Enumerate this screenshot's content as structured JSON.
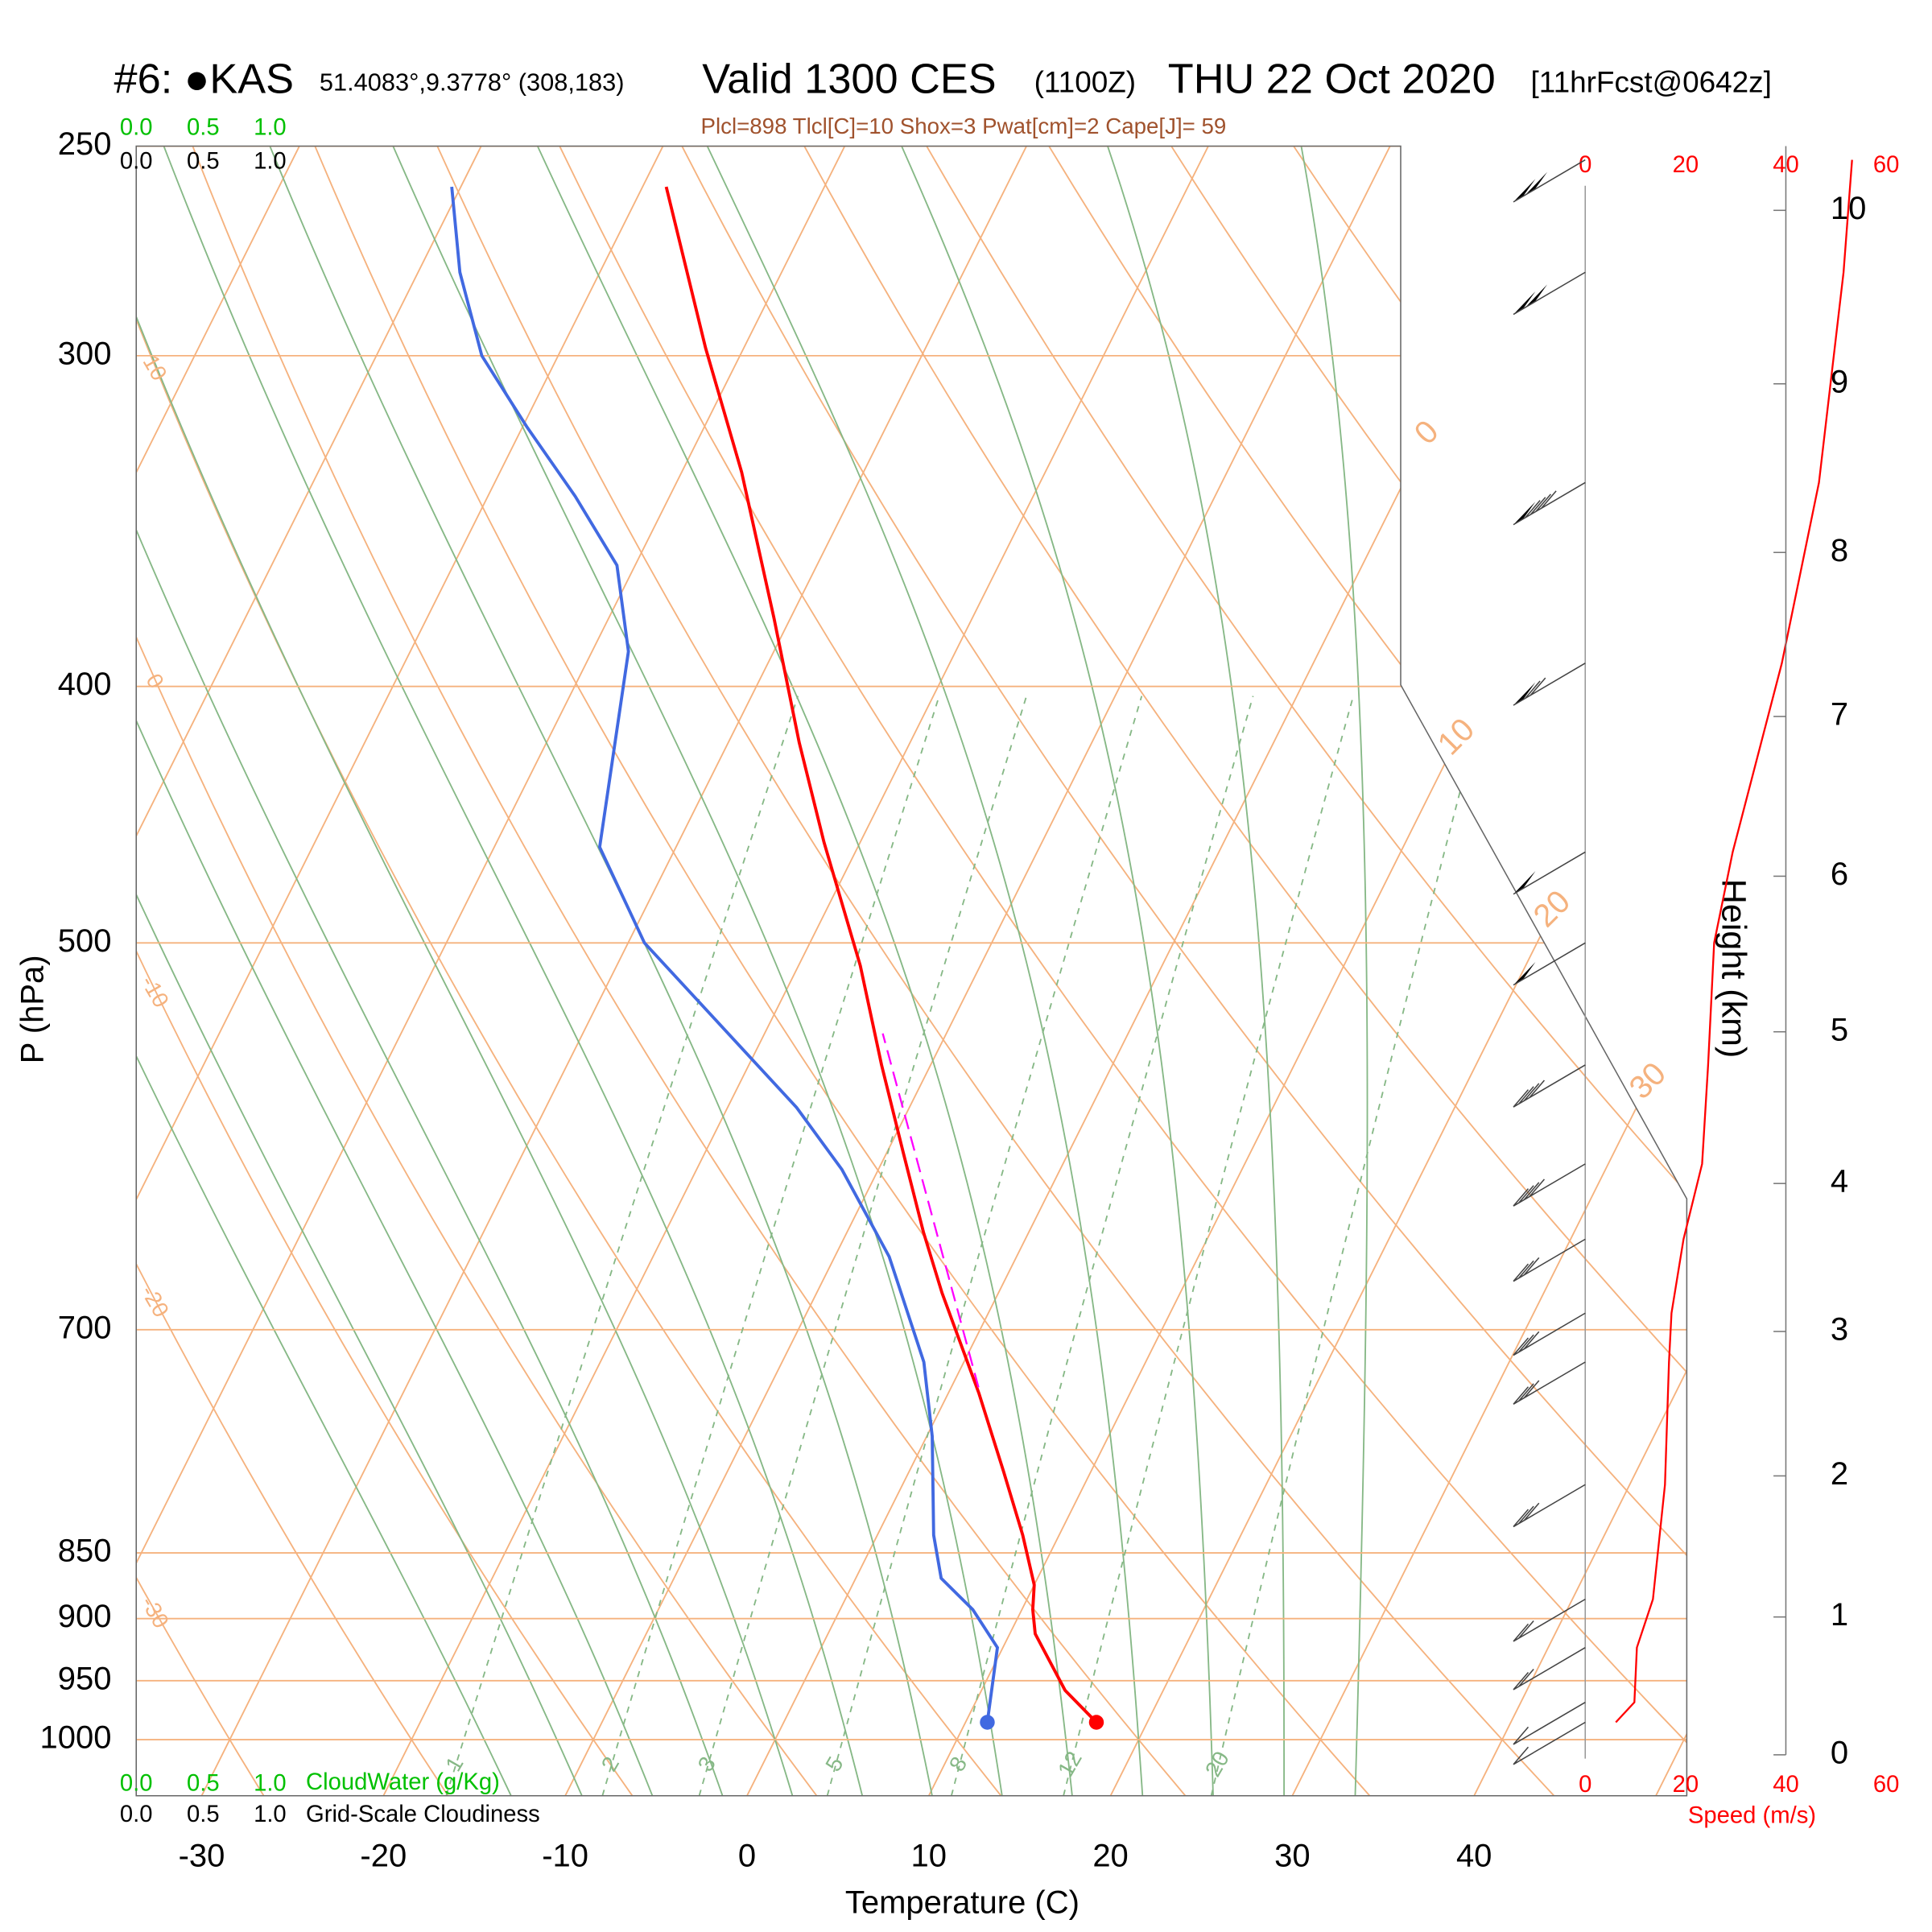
{
  "chart_data": {
    "type": "skewt",
    "title": "#6: ●KAS",
    "station": "51.4083°,9.3778° (308,183)",
    "valid": "Valid 1300 CES",
    "zulu": "(1100Z)",
    "date": "THU 22 Oct 2020",
    "forecast": "[11hrFcst@0642z]",
    "indices": "Plcl=898 Tlcl[C]=10 Shox=3 Pwat[cm]=2 Cape[J]= 59",
    "xlabel": "Temperature (C)",
    "ylabel": "P (hPa)",
    "y2label": "Height (km)",
    "speed_label": "Speed (m/s)",
    "cloudwater_label": "CloudWater (g/Kg)",
    "cloudiness_label": "Grid-Scale Cloudiness",
    "xlim": [
      -33.6,
      51.7
    ],
    "xticks": [
      -30,
      -20,
      -10,
      0,
      10,
      20,
      30,
      40
    ],
    "ylim": [
      1050,
      250
    ],
    "yticks": [
      250,
      300,
      400,
      500,
      700,
      850,
      900,
      950,
      1000
    ],
    "log_y": true,
    "y2ticks": [
      0,
      1,
      2,
      3,
      4,
      5,
      6,
      7,
      8,
      9,
      10
    ],
    "speed_xlim": [
      0,
      60
    ],
    "speed_xticks": [
      0,
      20,
      40,
      60
    ],
    "cloud_ticks": [
      {
        "value": 0,
        "label": "0.0"
      },
      {
        "value": 0.5,
        "label": "0.5"
      },
      {
        "value": 1,
        "label": "1.0"
      }
    ],
    "dry_adiabat_labels": [
      10,
      0,
      -10,
      -20,
      -30
    ],
    "isotherm_labels": [
      0,
      10,
      20,
      30
    ],
    "mixing_ratio_labels": [
      1,
      2,
      3,
      5,
      8,
      12,
      20
    ],
    "series": [
      {
        "color": "#ff0000",
        "pressure": [
          985,
          958,
          912,
          893,
          874,
          837,
          792,
          740,
          678,
          643,
          600,
          556,
          510,
          458,
          420,
          377,
          332,
          298,
          259
        ],
        "values": [
          17.2,
          14.6,
          11.4,
          10.6,
          10.0,
          8.0,
          5.2,
          1.7,
          -3.1,
          -5.8,
          -9.1,
          -12.7,
          -16.6,
          -22.0,
          -26.1,
          -30.9,
          -36.7,
          -42.1,
          -48.7
        ]
      },
      {
        "color": "#4169e1",
        "pressure": [
          985,
          923,
          893,
          869,
          837,
          768,
          720,
          657,
          609,
          577,
          500,
          460,
          388,
          360,
          339,
          319,
          300,
          279,
          259
        ],
        "values": [
          11.2,
          9.7,
          7.3,
          4.7,
          3.1,
          0.3,
          -2.2,
          -7.0,
          -12.0,
          -16.2,
          -29.1,
          -34.2,
          -38.0,
          -41.0,
          -45.2,
          -49.8,
          -54.2,
          -57.7,
          -60.5
        ]
      },
      {
        "color": "#ff00ff",
        "pressure": [
          736,
          541
        ],
        "values": [
          1.5,
          -13.5
        ]
      }
    ],
    "wind": {
      "color": "#ff0000",
      "pressure": [
        985,
        968,
        923,
        885,
        801,
        720,
        690,
        647,
        606,
        556,
        500,
        462,
        392,
        335,
        279,
        253
      ],
      "values": [
        6.1,
        9.8,
        10.3,
        13.5,
        15.9,
        16.7,
        17.2,
        19.6,
        23.3,
        24.5,
        25.7,
        29.4,
        39.2,
        46.6,
        51.5,
        53.2
      ]
    }
  }
}
